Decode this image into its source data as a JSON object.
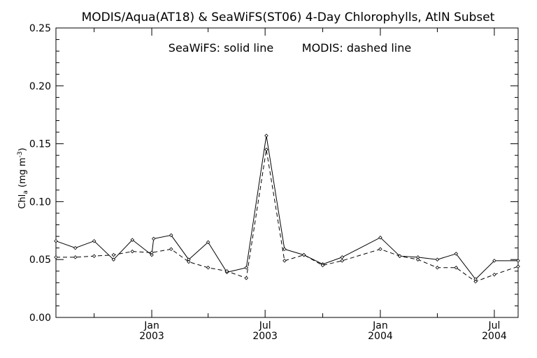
{
  "chart_data": {
    "type": "line",
    "title": "MODIS/Aqua(AT18) & SeaWiFS(ST06) 4-Day Chlorophylls, AtlN Subset",
    "note": {
      "seawifs": "SeaWiFS: solid line",
      "modis": "MODIS: dashed line"
    },
    "ylabel": {
      "main": "Chl",
      "subscript": "a",
      "unit_open": " (mg m",
      "superscript": "-3",
      "unit_close": ")"
    },
    "xlabel": "",
    "xlim": [
      "2002-08-01",
      "2004-08-08"
    ],
    "ylim": [
      0.0,
      0.25
    ],
    "y_ticks": [
      "0.00",
      "0.05",
      "0.10",
      "0.15",
      "0.20",
      "0.25"
    ],
    "x_tick_labels": [
      {
        "date": "2003-01-01",
        "month": "Jan",
        "year": "2003"
      },
      {
        "date": "2003-07-01",
        "month": "Jul",
        "year": "2003"
      },
      {
        "date": "2004-01-01",
        "month": "Jan",
        "year": "2004"
      },
      {
        "date": "2004-07-01",
        "month": "Jul",
        "year": "2004"
      }
    ],
    "x_minor_ticks": [
      "2002-10-01",
      "2003-04-01",
      "2003-10-01",
      "2004-04-01"
    ],
    "grid": false,
    "series": [
      {
        "name": "SeaWiFS",
        "style": "solid",
        "points": [
          [
            "2002-08-01",
            0.066
          ],
          [
            "2002-09-01",
            0.06
          ],
          [
            "2002-10-01",
            0.066
          ],
          [
            "2002-11-01",
            0.05
          ],
          [
            "2002-12-01",
            0.067
          ],
          [
            "2003-01-01",
            0.054
          ],
          [
            "2003-01-04",
            0.068
          ],
          [
            "2003-02-01",
            0.071
          ],
          [
            "2003-03-01",
            0.05
          ],
          [
            "2003-04-01",
            0.065
          ],
          [
            "2003-05-01",
            0.039
          ],
          [
            "2003-06-01",
            0.043
          ],
          [
            "2003-07-03",
            0.157
          ],
          [
            "2003-08-01",
            0.059
          ],
          [
            "2003-09-01",
            0.054
          ],
          [
            "2003-10-01",
            0.046
          ],
          [
            "2003-11-01",
            0.052
          ],
          [
            "2004-01-01",
            0.069
          ],
          [
            "2004-02-01",
            0.053
          ],
          [
            "2004-03-01",
            0.052
          ],
          [
            "2004-04-01",
            0.05
          ],
          [
            "2004-05-01",
            0.055
          ],
          [
            "2004-06-01",
            0.033
          ],
          [
            "2004-07-01",
            0.049
          ],
          [
            "2004-08-08",
            0.049
          ]
        ]
      },
      {
        "name": "MODIS",
        "style": "dashed",
        "points": [
          [
            "2002-08-01",
            0.052
          ],
          [
            "2002-09-01",
            0.052
          ],
          [
            "2002-10-01",
            0.053
          ],
          [
            "2002-11-01",
            0.054
          ],
          [
            "2002-12-01",
            0.057
          ],
          [
            "2003-01-01",
            0.056
          ],
          [
            "2003-02-01",
            0.059
          ],
          [
            "2003-03-01",
            0.048
          ],
          [
            "2003-04-01",
            0.043
          ],
          [
            "2003-05-01",
            0.04
          ],
          [
            "2003-06-01",
            0.034
          ],
          [
            "2003-07-03",
            0.145
          ],
          [
            "2003-08-01",
            0.049
          ],
          [
            "2003-09-01",
            0.054
          ],
          [
            "2003-10-01",
            0.045
          ],
          [
            "2003-11-01",
            0.049
          ],
          [
            "2004-01-01",
            0.059
          ],
          [
            "2004-02-01",
            0.053
          ],
          [
            "2004-03-01",
            0.05
          ],
          [
            "2004-04-01",
            0.043
          ],
          [
            "2004-05-01",
            0.043
          ],
          [
            "2004-06-01",
            0.031
          ],
          [
            "2004-07-01",
            0.037
          ],
          [
            "2004-08-08",
            0.044
          ]
        ]
      }
    ]
  }
}
